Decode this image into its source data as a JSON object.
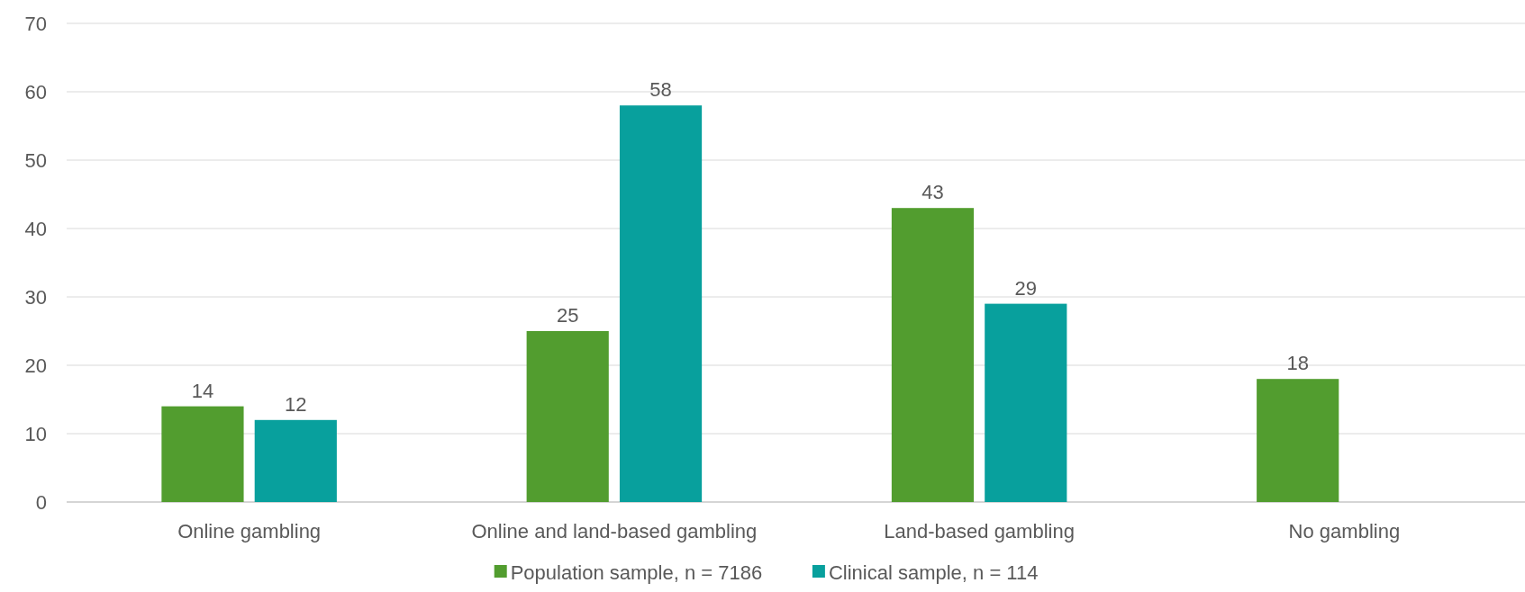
{
  "chart_data": {
    "type": "bar",
    "categories": [
      "Online gambling",
      "Online and land-based gambling",
      "Land-based gambling",
      "No gambling"
    ],
    "series": [
      {
        "name": "Population sample, n = 7186",
        "color": "#529d2f",
        "values": [
          14,
          25,
          43,
          18
        ]
      },
      {
        "name": "Clinical sample, n = 114",
        "color": "#08a09d",
        "values": [
          12,
          58,
          29,
          null
        ]
      }
    ],
    "ylim": [
      0,
      70
    ],
    "yticks": [
      0,
      10,
      20,
      30,
      40,
      50,
      60,
      70
    ],
    "grid": "y",
    "legend": "bottom",
    "data_labels": true
  }
}
